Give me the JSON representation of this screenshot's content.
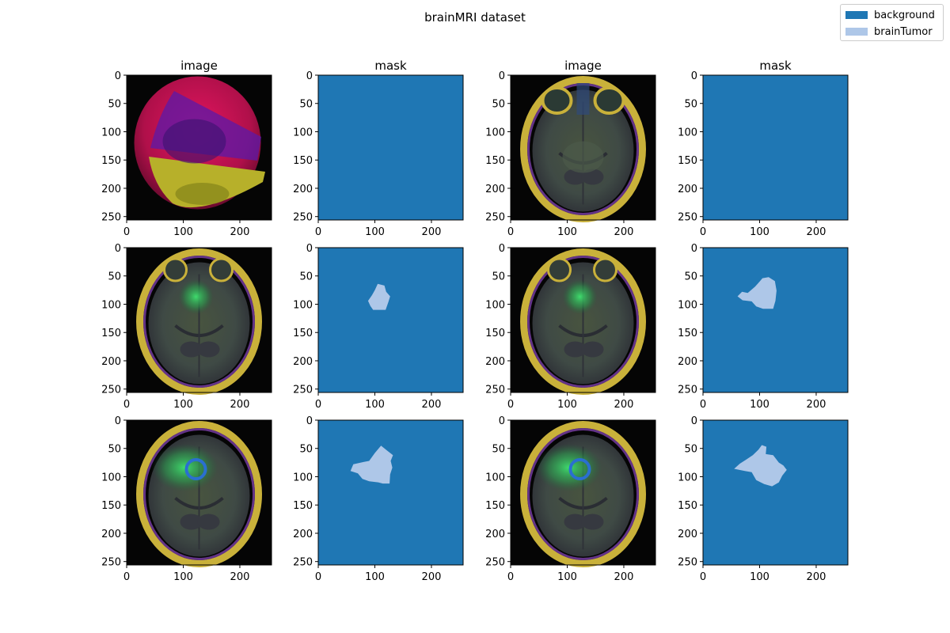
{
  "figure": {
    "suptitle": "brainMRI dataset"
  },
  "legend": {
    "placement": "upper-right",
    "items": [
      {
        "label": "background",
        "color": "#1f77b4"
      },
      {
        "label": "brainTumor",
        "color": "#aec7e8"
      }
    ]
  },
  "colors": {
    "background": "#1f77b4",
    "tumor": "#aec7e8"
  },
  "chart_data": {
    "type": "image-grid",
    "rows": 3,
    "cols": 4,
    "axis_range": {
      "xlim": [
        0,
        256
      ],
      "ylim": [
        256,
        0
      ]
    },
    "xticks": [
      0,
      100,
      200
    ],
    "yticks": [
      0,
      50,
      100,
      150,
      200,
      250
    ],
    "column_titles": [
      "image",
      "mask",
      "image",
      "mask"
    ],
    "panels": [
      {
        "row": 0,
        "col": 0,
        "kind": "image",
        "variant": "color-artifact"
      },
      {
        "row": 0,
        "col": 1,
        "kind": "mask",
        "tumor": []
      },
      {
        "row": 0,
        "col": 2,
        "kind": "image",
        "variant": "orbits-slice"
      },
      {
        "row": 0,
        "col": 3,
        "kind": "mask",
        "tumor": []
      },
      {
        "row": 1,
        "col": 0,
        "kind": "image",
        "variant": "tumor-small"
      },
      {
        "row": 1,
        "col": 1,
        "kind": "mask",
        "tumor": [
          [
            105,
            64
          ],
          [
            117,
            67
          ],
          [
            120,
            78
          ],
          [
            127,
            86
          ],
          [
            124,
            96
          ],
          [
            119,
            110
          ],
          [
            97,
            110
          ],
          [
            92,
            103
          ],
          [
            88,
            94
          ],
          [
            95,
            84
          ],
          [
            100,
            75
          ]
        ]
      },
      {
        "row": 1,
        "col": 2,
        "kind": "image",
        "variant": "tumor-small"
      },
      {
        "row": 1,
        "col": 3,
        "kind": "mask",
        "tumor": [
          [
            105,
            54
          ],
          [
            116,
            52
          ],
          [
            127,
            59
          ],
          [
            130,
            76
          ],
          [
            128,
            94
          ],
          [
            124,
            108
          ],
          [
            106,
            108
          ],
          [
            94,
            104
          ],
          [
            86,
            95
          ],
          [
            70,
            93
          ],
          [
            61,
            86
          ],
          [
            69,
            78
          ],
          [
            79,
            80
          ],
          [
            92,
            69
          ],
          [
            100,
            60
          ]
        ]
      },
      {
        "row": 2,
        "col": 0,
        "kind": "image",
        "variant": "tumor-large"
      },
      {
        "row": 2,
        "col": 1,
        "kind": "mask",
        "tumor": [
          [
            111,
            45
          ],
          [
            122,
            54
          ],
          [
            132,
            62
          ],
          [
            128,
            72
          ],
          [
            131,
            84
          ],
          [
            127,
            96
          ],
          [
            126,
            112
          ],
          [
            114,
            112
          ],
          [
            106,
            110
          ],
          [
            90,
            108
          ],
          [
            78,
            104
          ],
          [
            70,
            94
          ],
          [
            57,
            90
          ],
          [
            62,
            78
          ],
          [
            80,
            74
          ],
          [
            90,
            72
          ],
          [
            100,
            58
          ]
        ]
      },
      {
        "row": 2,
        "col": 2,
        "kind": "image",
        "variant": "tumor-large"
      },
      {
        "row": 2,
        "col": 3,
        "kind": "mask",
        "tumor": [
          [
            104,
            44
          ],
          [
            112,
            47
          ],
          [
            111,
            60
          ],
          [
            124,
            62
          ],
          [
            134,
            75
          ],
          [
            142,
            80
          ],
          [
            148,
            88
          ],
          [
            140,
            98
          ],
          [
            134,
            110
          ],
          [
            122,
            117
          ],
          [
            108,
            113
          ],
          [
            94,
            106
          ],
          [
            86,
            92
          ],
          [
            74,
            90
          ],
          [
            55,
            86
          ],
          [
            65,
            77
          ],
          [
            76,
            70
          ],
          [
            88,
            62
          ],
          [
            98,
            52
          ]
        ]
      }
    ]
  }
}
